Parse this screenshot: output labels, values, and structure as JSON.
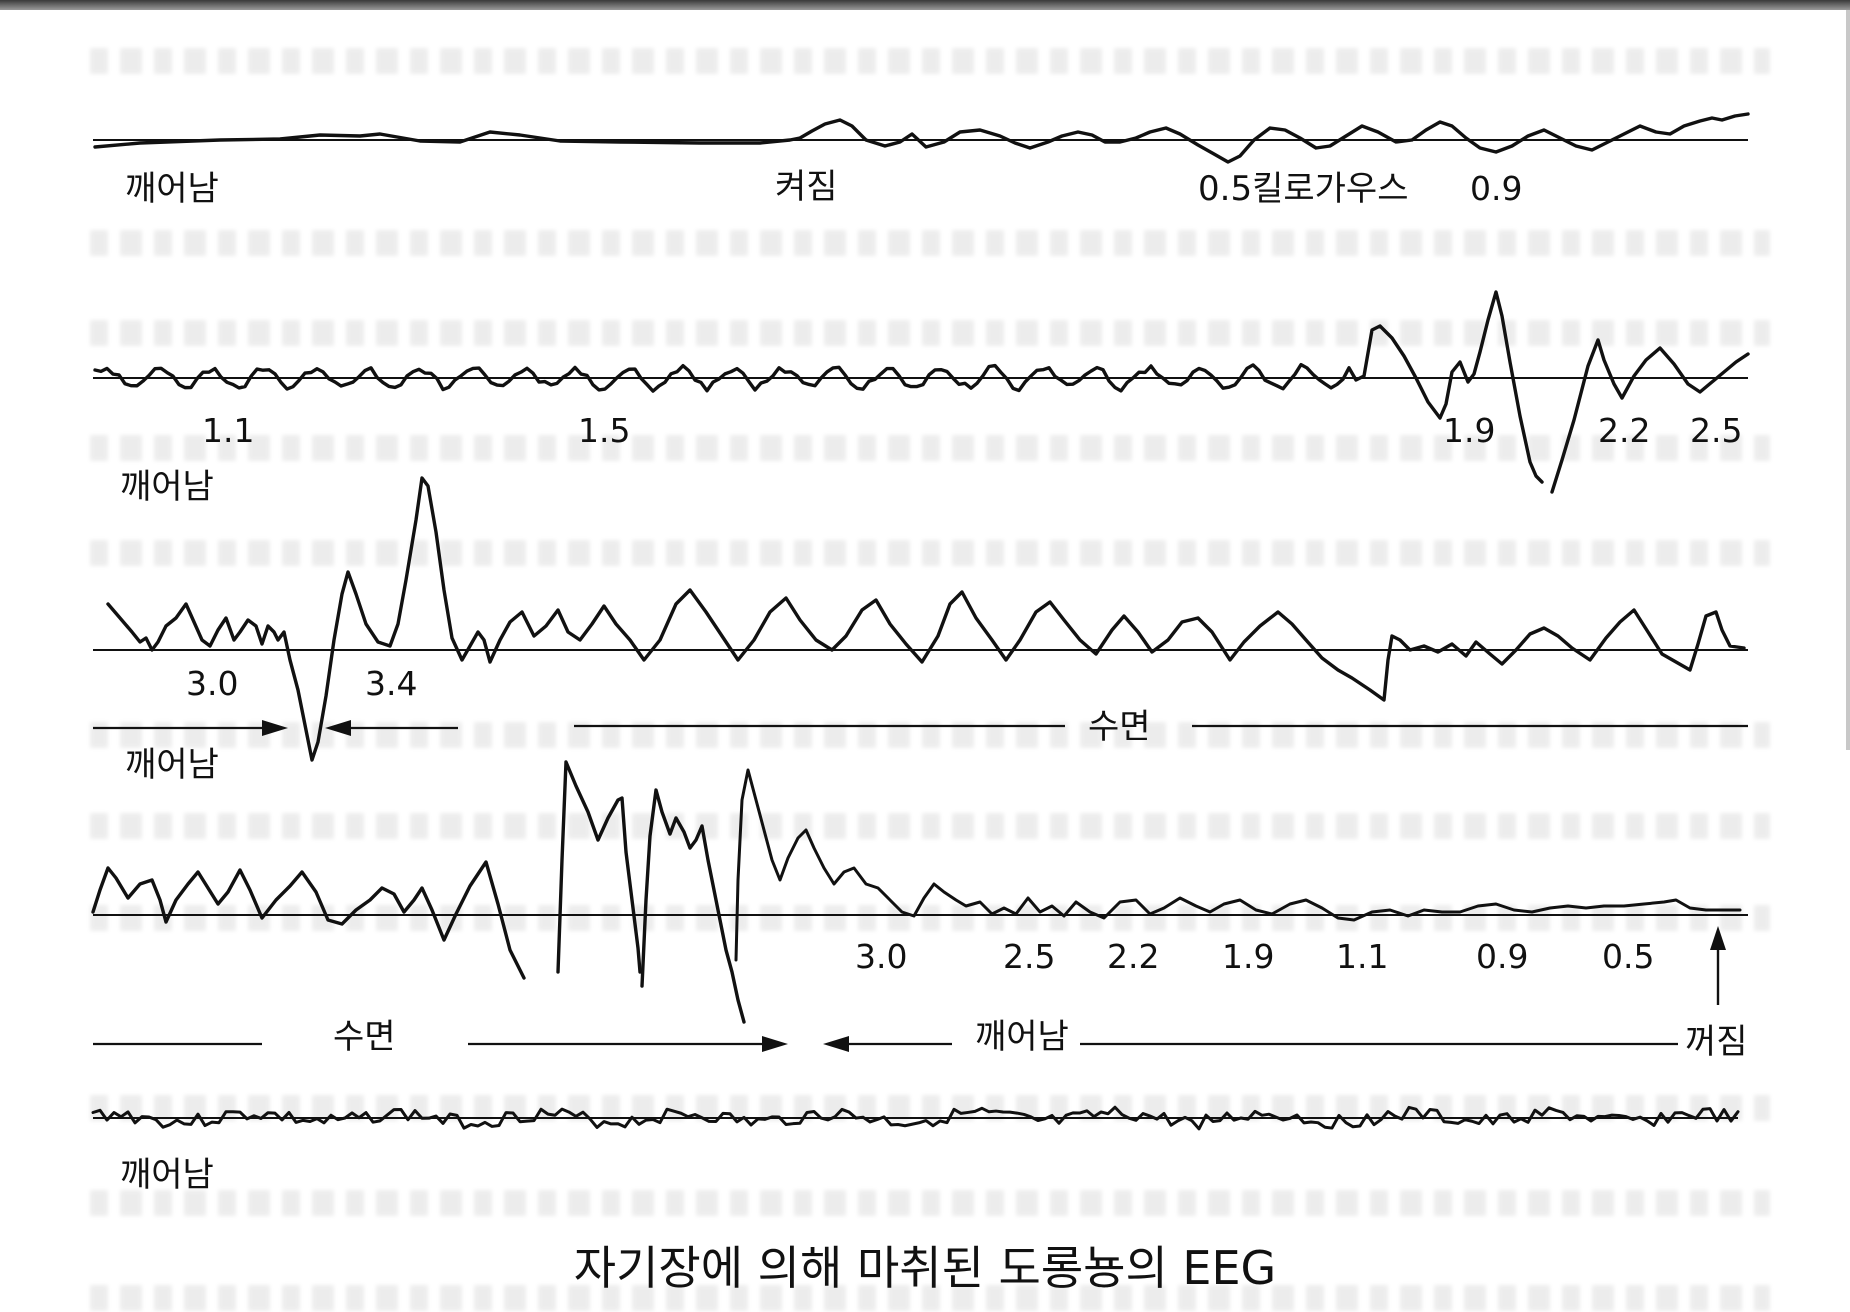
{
  "caption": "자기장에 의해 마취된 도롱뇽의 EEG",
  "traces": [
    {
      "labels": {
        "state_start": "깨어남",
        "event": "켜짐",
        "field": "0.5킬로가우스",
        "field_2": "0.9"
      }
    },
    {
      "labels": {
        "values": [
          "1.1",
          "1.5",
          "1.9",
          "2.2",
          "2.5"
        ],
        "state": "깨어남"
      }
    },
    {
      "labels": {
        "values": [
          "3.0",
          "3.4"
        ],
        "state": "깨어남",
        "sleep": "수면"
      }
    },
    {
      "labels": {
        "values": [
          "3.0",
          "2.5",
          "2.2",
          "1.9",
          "1.1",
          "0.9",
          "0.5"
        ],
        "sleep": "수면",
        "state": "깨어남",
        "off": "꺼짐"
      }
    },
    {
      "labels": {
        "state": "깨어남"
      }
    }
  ],
  "colors": {
    "ink": "#111111",
    "paper": "#ffffff"
  }
}
